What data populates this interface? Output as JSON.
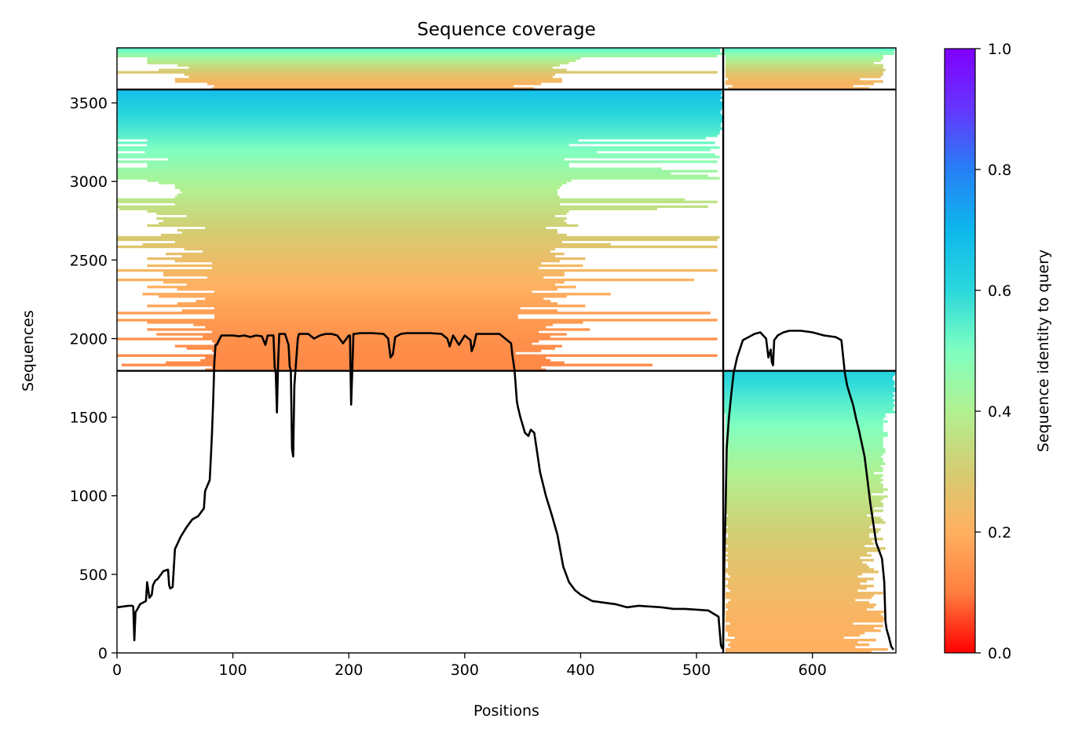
{
  "chart_data": {
    "type": "heatmap",
    "title": "Sequence coverage",
    "xlabel": "Positions",
    "ylabel": "Sequences",
    "xlim": [
      0,
      672
    ],
    "ylim": [
      0,
      3850
    ],
    "x_ticks": [
      0,
      100,
      200,
      300,
      400,
      500,
      600
    ],
    "x_tick_labels": [
      "0",
      "100",
      "200",
      "300",
      "400",
      "500",
      "600"
    ],
    "y_ticks": [
      0,
      500,
      1000,
      1500,
      2000,
      2500,
      3000,
      3500
    ],
    "y_tick_labels": [
      "0",
      "500",
      "1000",
      "1500",
      "2000",
      "2500",
      "3000",
      "3500"
    ],
    "chain_boundary_x": 523,
    "row_boundaries_y": [
      1795,
      3585
    ],
    "colorbar": {
      "label": "Sequence identity to query",
      "range": [
        0,
        1
      ],
      "ticks": [
        0.0,
        0.2,
        0.4,
        0.6,
        0.8,
        1.0
      ],
      "tick_labels": [
        "0.0",
        "0.2",
        "0.4",
        "0.6",
        "0.8",
        "1.0"
      ],
      "colormap": "rainbow",
      "stops": [
        "#ff0000",
        "#ff7f40",
        "#ffb060",
        "#d5cc72",
        "#b0f090",
        "#7fffc0",
        "#2ad8dc",
        "#0db7ec",
        "#2680f6",
        "#6536fd",
        "#8000ff"
      ]
    },
    "grid": false,
    "legend": "none",
    "blocks": [
      {
        "name": "block-chain1-paired",
        "x_range": [
          0,
          523
        ],
        "y_range": [
          3585,
          3850
        ],
        "identity_range": [
          0.2,
          0.55
        ]
      },
      {
        "name": "block-chain2-paired",
        "x_range": [
          523,
          672
        ],
        "y_range": [
          3585,
          3850
        ],
        "identity_range": [
          0.2,
          0.55
        ]
      },
      {
        "name": "block-chain1-unpaired",
        "x_range": [
          0,
          523
        ],
        "y_range": [
          1795,
          3585
        ],
        "identity_range": [
          0.12,
          0.68
        ]
      },
      {
        "name": "block-chain2-unpaired",
        "x_range": [
          523,
          672
        ],
        "y_range": [
          0,
          1795
        ],
        "identity_range": [
          0.2,
          0.62
        ]
      }
    ],
    "coverage_line": {
      "name": "coverage",
      "color": "#000000",
      "x": [
        0,
        10,
        13,
        14,
        15,
        16,
        17,
        20,
        25,
        26,
        28,
        30,
        31,
        33,
        35,
        40,
        44,
        45,
        46,
        48,
        50,
        55,
        60,
        65,
        70,
        75,
        76,
        80,
        81,
        82,
        83,
        84,
        85,
        86,
        88,
        90,
        95,
        100,
        105,
        110,
        115,
        120,
        125,
        128,
        130,
        135,
        136,
        137,
        138,
        139,
        140,
        141,
        142,
        145,
        148,
        149,
        150,
        151,
        152,
        153,
        154,
        155,
        156,
        157,
        160,
        165,
        170,
        175,
        180,
        185,
        190,
        195,
        200,
        201,
        202,
        203,
        204,
        205,
        210,
        220,
        230,
        234,
        236,
        238,
        240,
        245,
        250,
        260,
        270,
        280,
        285,
        287,
        290,
        295,
        300,
        305,
        306,
        308,
        310,
        315,
        320,
        330,
        335,
        340,
        341,
        343,
        344,
        345,
        346,
        348,
        350,
        352,
        355,
        357,
        360,
        362,
        365,
        370,
        375,
        380,
        385,
        390,
        395,
        400,
        410,
        420,
        430,
        440,
        450,
        460,
        470,
        480,
        490,
        500,
        510,
        519,
        521,
        522,
        523,
        524,
        525,
        526,
        528,
        530,
        532,
        535,
        540,
        545,
        550,
        555,
        560,
        562,
        564,
        565,
        566,
        567,
        568,
        569,
        570,
        575,
        580,
        590,
        600,
        610,
        620,
        625,
        628,
        630,
        632,
        635,
        638,
        640,
        645,
        650,
        655,
        660,
        662,
        663,
        664,
        666,
        668,
        670,
        672
      ],
      "y": [
        290,
        300,
        300,
        295,
        80,
        260,
        270,
        310,
        330,
        450,
        350,
        370,
        430,
        460,
        470,
        520,
        530,
        430,
        410,
        420,
        660,
        740,
        800,
        850,
        870,
        920,
        1030,
        1100,
        1250,
        1400,
        1600,
        1850,
        1960,
        1960,
        1990,
        2020,
        2020,
        2020,
        2015,
        2020,
        2010,
        2020,
        2015,
        1960,
        2020,
        2020,
        1820,
        1780,
        1530,
        1850,
        2030,
        2030,
        2030,
        2030,
        1960,
        1820,
        1800,
        1300,
        1250,
        1700,
        1800,
        1900,
        2000,
        2030,
        2030,
        2030,
        2000,
        2020,
        2030,
        2030,
        2020,
        1970,
        2020,
        2020,
        1580,
        1800,
        2030,
        2030,
        2035,
        2035,
        2030,
        2000,
        1880,
        1900,
        2010,
        2030,
        2035,
        2035,
        2035,
        2030,
        2000,
        1950,
        2020,
        1960,
        2020,
        1990,
        1920,
        1960,
        2030,
        2030,
        2030,
        2030,
        2000,
        1970,
        1900,
        1800,
        1700,
        1600,
        1560,
        1500,
        1450,
        1400,
        1380,
        1420,
        1400,
        1300,
        1150,
        1000,
        880,
        750,
        550,
        450,
        400,
        370,
        330,
        320,
        310,
        290,
        300,
        295,
        290,
        280,
        280,
        275,
        270,
        230,
        50,
        30,
        30,
        600,
        900,
        1300,
        1500,
        1650,
        1780,
        1880,
        1990,
        2010,
        2030,
        2040,
        2000,
        1880,
        1930,
        1850,
        1830,
        1990,
        2000,
        2010,
        2020,
        2040,
        2050,
        2050,
        2040,
        2020,
        2010,
        1990,
        1780,
        1700,
        1650,
        1580,
        1480,
        1420,
        1250,
        950,
        700,
        600,
        450,
        200,
        150,
        100,
        40,
        20
      ]
    }
  }
}
